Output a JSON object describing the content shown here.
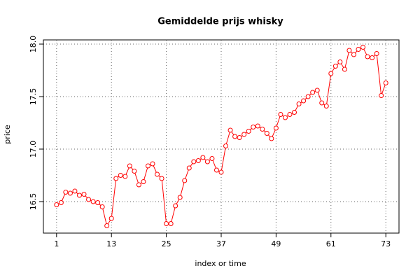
{
  "chart_data": {
    "type": "line",
    "title": "Gemiddelde prijs whisky",
    "x_label": "index or time",
    "y_label": "price",
    "x": [
      1,
      2,
      3,
      4,
      5,
      6,
      7,
      8,
      9,
      10,
      11,
      12,
      13,
      14,
      15,
      16,
      17,
      18,
      19,
      20,
      21,
      22,
      23,
      24,
      25,
      26,
      27,
      28,
      29,
      30,
      31,
      32,
      33,
      34,
      35,
      36,
      37,
      38,
      39,
      40,
      41,
      42,
      43,
      44,
      45,
      46,
      47,
      48,
      49,
      50,
      51,
      52,
      53,
      54,
      55,
      56,
      57,
      58,
      59,
      60,
      61,
      62,
      63,
      64,
      65,
      66,
      67,
      68,
      69,
      70,
      71,
      72,
      73
    ],
    "values": [
      16.47,
      16.49,
      16.59,
      16.58,
      16.6,
      16.56,
      16.57,
      16.52,
      16.5,
      16.49,
      16.45,
      16.27,
      16.34,
      16.72,
      16.75,
      16.74,
      16.84,
      16.79,
      16.66,
      16.69,
      16.84,
      16.86,
      16.76,
      16.72,
      16.29,
      16.29,
      16.46,
      16.54,
      16.7,
      16.82,
      16.88,
      16.89,
      16.92,
      16.88,
      16.91,
      16.8,
      16.78,
      17.03,
      17.18,
      17.12,
      17.11,
      17.14,
      17.17,
      17.21,
      17.22,
      17.19,
      17.15,
      17.1,
      17.2,
      17.33,
      17.3,
      17.33,
      17.35,
      17.43,
      17.46,
      17.5,
      17.54,
      17.56,
      17.44,
      17.41,
      17.72,
      17.79,
      17.83,
      17.76,
      17.94,
      17.9,
      17.95,
      17.97,
      17.88,
      17.87,
      17.91,
      17.51,
      17.63
    ],
    "color": "#ff0000",
    "xlim": [
      -1.88,
      75.88
    ],
    "xticks": [
      1,
      13,
      25,
      37,
      49,
      61,
      73
    ],
    "ylim": [
      16.2,
      18.04
    ],
    "yticks": [
      {
        "value": 16.5,
        "label": "16.5"
      },
      {
        "value": 17,
        "label": "17.0"
      },
      {
        "value": 17.5,
        "label": "17.5"
      },
      {
        "value": 18,
        "label": "18.0"
      }
    ],
    "grid": true
  }
}
